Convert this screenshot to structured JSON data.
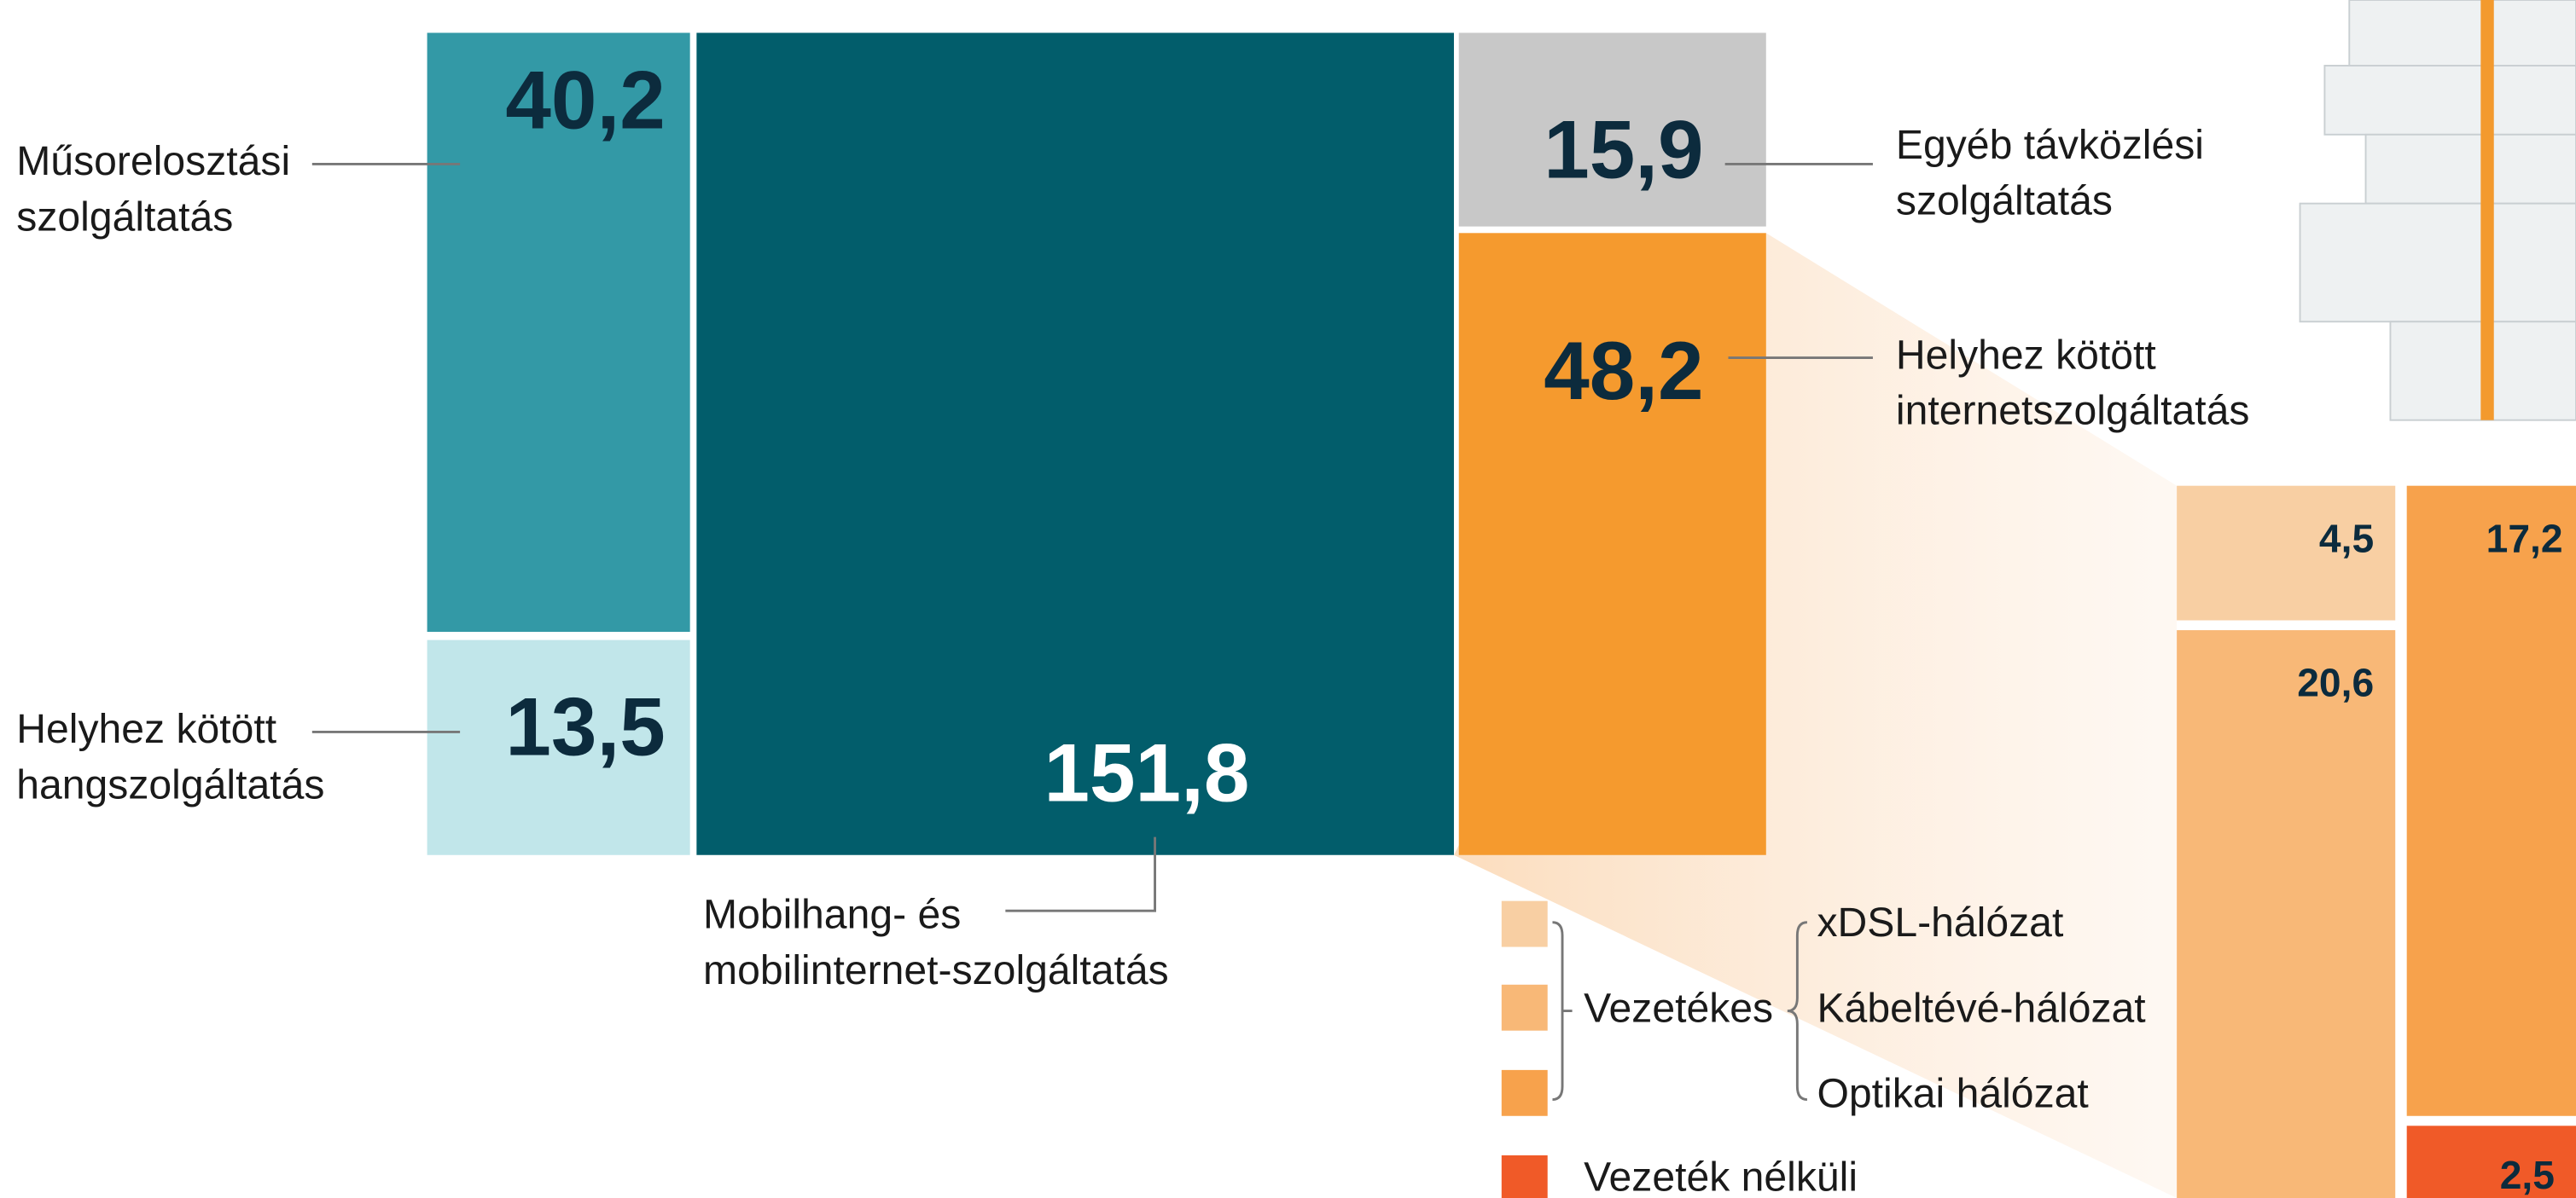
{
  "chart_data": {
    "type": "treemap",
    "items": [
      {
        "name_lines": [
          "Műsorelosztási",
          "szolgáltatás"
        ],
        "value": 40.2,
        "value_label": "40,2",
        "color": "#3399a6"
      },
      {
        "name_lines": [
          "Helyhez kötött",
          "hangszolgáltatás"
        ],
        "value": 13.5,
        "value_label": "13,5",
        "color": "#c1e6ea"
      },
      {
        "name_lines": [
          "Mobilhang- és",
          "mobilinternet-szolgáltatás"
        ],
        "value": 151.8,
        "value_label": "151,8",
        "color": "#025d6b"
      },
      {
        "name_lines": [
          "Egyéb távközlési",
          "szolgáltatás"
        ],
        "value": 15.9,
        "value_label": "15,9",
        "color": "#c8c8c8"
      },
      {
        "name_lines": [
          "Helyhez kötött",
          "internetszolgáltatás"
        ],
        "value": 48.2,
        "value_label": "48,2",
        "color": "#f59a2e"
      }
    ],
    "breakdown": {
      "group_label": "Vezetékes",
      "items": [
        {
          "name": "xDSL-hálózat",
          "value": 4.5,
          "value_label": "4,5",
          "color": "#f8cfa3"
        },
        {
          "name": "Kábeltévé-hálózat",
          "value": 20.6,
          "value_label": "20,6",
          "color": "#f8b877"
        },
        {
          "name": "Optikai hálózat",
          "value": 17.2,
          "value_label": "17,2",
          "color": "#f7a24c"
        },
        {
          "name": "Vezeték nélküli",
          "value": 2.5,
          "value_label": "2,5",
          "color": "#f05a28"
        }
      ]
    }
  }
}
